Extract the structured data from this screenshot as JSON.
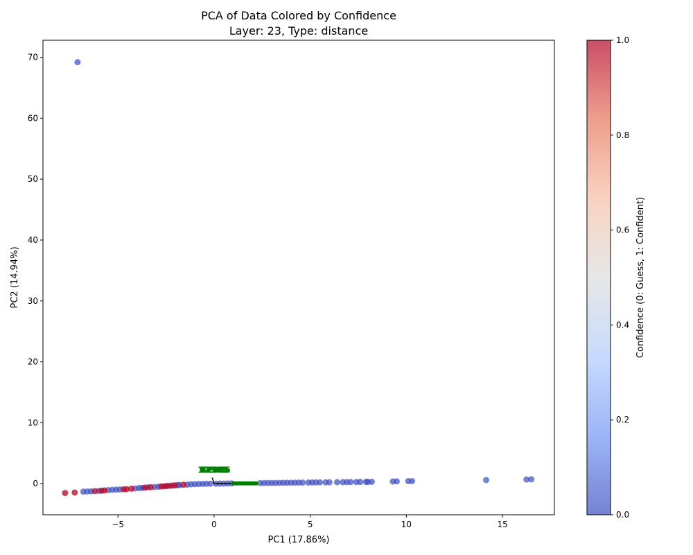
{
  "chart_data": {
    "type": "scatter",
    "title": "PCA of Data Colored by Confidence",
    "subtitle": "Layer: 23, Type: distance",
    "xlabel": "PC1 (17.86%)",
    "ylabel": "PC2 (14.94%)",
    "xlim": [
      -8.9,
      17.7
    ],
    "ylim": [
      -5.1,
      72.8
    ],
    "xticks": [
      -5,
      0,
      5,
      10,
      15
    ],
    "yticks": [
      0,
      10,
      20,
      30,
      40,
      50,
      60,
      70
    ],
    "grid": false,
    "colorbar": {
      "label": "Confidence (0: Guess, 1: Confident)",
      "range": [
        0,
        1
      ],
      "ticks": [
        "0.0",
        "0.2",
        "0.4",
        "0.6",
        "0.8",
        "1.0"
      ],
      "colormap": [
        "#3b4cc0",
        "#7396f5",
        "#b0cbfc",
        "#dddddd",
        "#f6bfa6",
        "#e7745b",
        "#b40426"
      ]
    },
    "point_colors": {
      "guess": "#3b4cc0",
      "confident": "#b40426"
    },
    "points_confident": [
      [
        -7.75,
        -1.52
      ],
      [
        -7.25,
        -1.45
      ],
      [
        -6.2,
        -1.22
      ],
      [
        -5.85,
        -1.15
      ],
      [
        -5.7,
        -1.1
      ],
      [
        -4.7,
        -0.92
      ],
      [
        -4.55,
        -0.9
      ],
      [
        -4.3,
        -0.82
      ],
      [
        -3.6,
        -0.65
      ],
      [
        -3.3,
        -0.58
      ],
      [
        -2.75,
        -0.45
      ],
      [
        -2.6,
        -0.42
      ],
      [
        -2.45,
        -0.38
      ],
      [
        -2.2,
        -0.32
      ],
      [
        -2.05,
        -0.28
      ],
      [
        -1.6,
        -0.18
      ]
    ],
    "points_guess": [
      [
        -7.1,
        69.2
      ],
      [
        -6.8,
        -1.3
      ],
      [
        -6.6,
        -1.28
      ],
      [
        -6.4,
        -1.25
      ],
      [
        -6.0,
        -1.18
      ],
      [
        -5.5,
        -1.05
      ],
      [
        -5.3,
        -1.0
      ],
      [
        -5.1,
        -0.97
      ],
      [
        -4.9,
        -0.95
      ],
      [
        -4.1,
        -0.78
      ],
      [
        -3.9,
        -0.72
      ],
      [
        -3.75,
        -0.68
      ],
      [
        -3.45,
        -0.6
      ],
      [
        -3.1,
        -0.55
      ],
      [
        -2.9,
        -0.5
      ],
      [
        -2.35,
        -0.35
      ],
      [
        -1.9,
        -0.25
      ],
      [
        -1.8,
        -0.22
      ],
      [
        -1.4,
        -0.15
      ],
      [
        -1.2,
        -0.1
      ],
      [
        -1.0,
        -0.08
      ],
      [
        -0.8,
        -0.05
      ],
      [
        -0.6,
        -0.03
      ],
      [
        -0.4,
        -0.01
      ],
      [
        -0.2,
        0.0
      ],
      [
        0.1,
        0.0
      ],
      [
        0.3,
        0.02
      ],
      [
        0.5,
        0.03
      ],
      [
        0.7,
        0.04
      ],
      [
        0.9,
        0.05
      ],
      [
        2.4,
        0.1
      ],
      [
        2.6,
        0.11
      ],
      [
        2.8,
        0.12
      ],
      [
        3.0,
        0.12
      ],
      [
        3.2,
        0.13
      ],
      [
        3.4,
        0.14
      ],
      [
        3.6,
        0.15
      ],
      [
        3.8,
        0.15
      ],
      [
        4.0,
        0.16
      ],
      [
        4.2,
        0.17
      ],
      [
        4.4,
        0.18
      ],
      [
        4.6,
        0.18
      ],
      [
        4.9,
        0.19
      ],
      [
        5.1,
        0.2
      ],
      [
        5.3,
        0.21
      ],
      [
        5.5,
        0.22
      ],
      [
        5.8,
        0.22
      ],
      [
        6.0,
        0.23
      ],
      [
        6.4,
        0.24
      ],
      [
        6.7,
        0.25
      ],
      [
        6.9,
        0.26
      ],
      [
        7.1,
        0.27
      ],
      [
        7.4,
        0.28
      ],
      [
        7.6,
        0.29
      ],
      [
        7.9,
        0.3
      ],
      [
        8.0,
        0.3
      ],
      [
        8.2,
        0.31
      ],
      [
        9.3,
        0.36
      ],
      [
        9.5,
        0.38
      ],
      [
        10.1,
        0.42
      ],
      [
        10.3,
        0.43
      ],
      [
        14.15,
        0.6
      ],
      [
        16.25,
        0.7
      ],
      [
        16.5,
        0.72
      ]
    ],
    "annotations": {
      "color": "#008000",
      "label_text": "12345",
      "label_anchor": [
        0.0,
        1.8
      ],
      "marker_range": [
        1.0,
        2.2
      ],
      "marker_y": 0.05,
      "line": [
        [
          -0.1,
          1.0
        ],
        [
          0.0,
          0.05
        ],
        [
          1.0,
          0.05
        ]
      ]
    }
  }
}
